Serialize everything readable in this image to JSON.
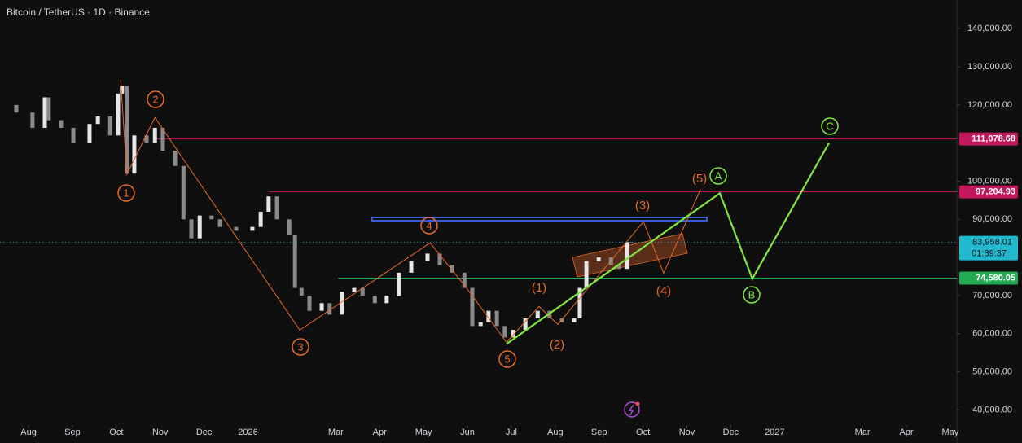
{
  "chart_data": {
    "type": "candlestick",
    "title": "Bitcoin / TetherUS · 1D · Binance",
    "candle_colors": {
      "up": "#e6e6e6",
      "down": "#8a8a8a"
    },
    "series": [
      {
        "x": [
          -0.65,
          -0.28,
          0.09,
          0.37,
          0.46,
          0.74,
          1.02,
          1.39,
          1.58,
          1.86,
          2.04,
          2.13,
          2.24,
          2.41,
          2.69,
          2.88,
          3.06,
          3.34,
          3.53,
          3.71,
          3.9,
          4.17,
          4.36,
          4.73,
          5.1,
          5.29,
          5.47,
          5.66,
          5.94,
          6.07,
          6.22,
          6.4,
          6.68,
          6.86,
          7.14,
          7.42,
          7.61,
          7.89,
          8.16,
          8.44,
          8.72,
          9.09,
          9.37,
          9.65,
          9.93,
          10.11,
          10.3,
          10.48,
          10.67,
          10.85,
          11.04,
          11.32,
          11.6,
          11.87,
          12.15,
          12.43,
          12.56,
          12.71,
          12.99,
          13.27,
          13.45,
          13.64,
          13.73
        ],
        "values": [
          120000,
          118000,
          114000,
          122000,
          116000,
          114000,
          110000,
          115000,
          117000,
          112000,
          123000,
          125000,
          102000,
          112000,
          110000,
          114000,
          108000,
          104000,
          90000,
          85000,
          91000,
          90000,
          88000,
          87000,
          88000,
          92000,
          96000,
          90000,
          86000,
          72000,
          70000,
          66000,
          68000,
          65000,
          71000,
          72000,
          70000,
          68000,
          70000,
          76000,
          79000,
          81000,
          78000,
          76000,
          72000,
          62000,
          63000,
          66000,
          62000,
          59000,
          61000,
          64000,
          66000,
          64000,
          63000,
          64000,
          72000,
          79000,
          80000,
          78000,
          77000,
          84000,
          83958.01
        ]
      }
    ],
    "xlim": [
      -0.65,
      21.15
    ],
    "xticks": [
      {
        "value": 0,
        "label": "Aug"
      },
      {
        "value": 1,
        "label": "Sep"
      },
      {
        "value": 2,
        "label": "Oct"
      },
      {
        "value": 3,
        "label": "Nov"
      },
      {
        "value": 4,
        "label": "Dec"
      },
      {
        "value": 5,
        "label": "2026"
      },
      {
        "value": 7,
        "label": "Mar"
      },
      {
        "value": 8,
        "label": "Apr"
      },
      {
        "value": 9,
        "label": "May"
      },
      {
        "value": 10,
        "label": "Jun"
      },
      {
        "value": 11,
        "label": "Jul"
      },
      {
        "value": 12,
        "label": "Aug"
      },
      {
        "value": 13,
        "label": "Sep"
      },
      {
        "value": 14,
        "label": "Oct"
      },
      {
        "value": 15,
        "label": "Nov"
      },
      {
        "value": 16,
        "label": "Dec"
      },
      {
        "value": 17,
        "label": "2027"
      },
      {
        "value": 19,
        "label": "Mar"
      },
      {
        "value": 20,
        "label": "Apr"
      },
      {
        "value": 21,
        "label": "May"
      }
    ],
    "ylim": [
      35043,
      145043
    ],
    "yticks": [
      {
        "value": 140000,
        "label": "140,000.00"
      },
      {
        "value": 130000,
        "label": "130,000.00"
      },
      {
        "value": 120000,
        "label": "120,000.00"
      },
      {
        "value": 100000,
        "label": "100,000.00"
      },
      {
        "value": 90000,
        "label": "90,000.00"
      },
      {
        "value": 70000,
        "label": "70,000.00"
      },
      {
        "value": 60000,
        "label": "60,000.00"
      },
      {
        "value": 50000,
        "label": "50,000.00"
      },
      {
        "value": 40000,
        "label": "40,000.00"
      }
    ],
    "price_lines": [
      {
        "value": 111078.68,
        "label": "111,078.68",
        "color": "#c2185b"
      },
      {
        "value": 97204.93,
        "label": "97,204.93",
        "color": "#c2185b"
      },
      {
        "value": 74580.05,
        "label": "74,580.05",
        "color": "#22ab52"
      }
    ],
    "last_price": {
      "value": 83958.01,
      "label": "83,958.01",
      "countdown": "01:39:37",
      "color": "#22b8cf"
    },
    "drawings": [
      {
        "color": "#e8692a",
        "x": [
          2.1,
          2.24,
          2.88,
          6.18,
          9.15,
          9.96,
          10.89
        ],
        "y": [
          126538,
          101752,
          116709,
          60940,
          83803,
          72265,
          57735
        ]
      },
      {
        "color": "#e8692a",
        "x": [
          10.89,
          11.63,
          12.06,
          14.01,
          14.47,
          15.31
        ],
        "y": [
          57735,
          67137,
          62436,
          89359,
          75897,
          97906
        ]
      },
      {
        "color": "#7ee83f",
        "x": [
          10.89,
          15.75,
          16.49,
          18.24
        ],
        "y": [
          57308,
          96838,
          74402,
          110085
        ]
      }
    ],
    "wave_labels": [
      "1",
      "2",
      "3",
      "4",
      "5",
      "(1)",
      "(2)",
      "(3)",
      "(4)",
      "(5)",
      "A",
      "B",
      "C"
    ]
  }
}
